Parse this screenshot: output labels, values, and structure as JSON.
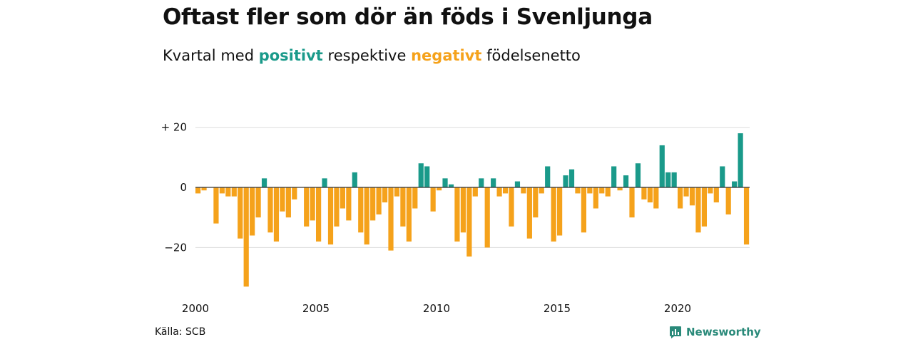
{
  "header": {
    "title": "Oftast fler som dör än föds i Svenljunga",
    "subtitle_prefix": "Kvartal med",
    "subtitle_positive": "positivt",
    "subtitle_middle": "respektive",
    "subtitle_negative": "negativt",
    "subtitle_suffix": "födelsenetto"
  },
  "footer": {
    "source": "Källa: SCB",
    "brand": "Newsworthy",
    "brand_icon": "newsworthy-logo-icon"
  },
  "colors": {
    "positive": "#1a9a8a",
    "negative": "#f5a21b",
    "grid": "#dddddd",
    "zero": "#333333"
  },
  "chart_data": {
    "type": "bar",
    "y_tick_labels": [
      "+ 20",
      "0",
      "−20"
    ],
    "y_ticks": [
      20,
      0,
      -20
    ],
    "x_tick_labels": [
      "2000",
      "2005",
      "2010",
      "2015",
      "2020"
    ],
    "x_ticks": [
      2000,
      2005,
      2010,
      2015,
      2020
    ],
    "ylim": [
      -36,
      22
    ],
    "x_start": 2000,
    "periods_per_year": 4,
    "values": [
      -2,
      -1,
      0,
      -12,
      -2,
      -3,
      -3,
      -17,
      -33,
      -16,
      -10,
      3,
      -15,
      -18,
      -8,
      -10,
      -4,
      0,
      -13,
      -11,
      -18,
      3,
      -19,
      -13,
      -7,
      -11,
      5,
      -15,
      -19,
      -11,
      -9,
      -5,
      -21,
      -3,
      -13,
      -18,
      -7,
      8,
      7,
      -8,
      -1,
      3,
      1,
      -18,
      -15,
      -23,
      -3,
      3,
      -20,
      3,
      -3,
      -2,
      -13,
      2,
      -2,
      -17,
      -10,
      -2,
      7,
      -18,
      -16,
      4,
      6,
      -2,
      -15,
      -2,
      -7,
      -2,
      -3,
      7,
      -1,
      4,
      -10,
      8,
      -4,
      -5,
      -7,
      14,
      5,
      5,
      -7,
      -3,
      -6,
      -15,
      -13,
      -2,
      -5,
      7,
      -9,
      2,
      18,
      -19
    ]
  }
}
